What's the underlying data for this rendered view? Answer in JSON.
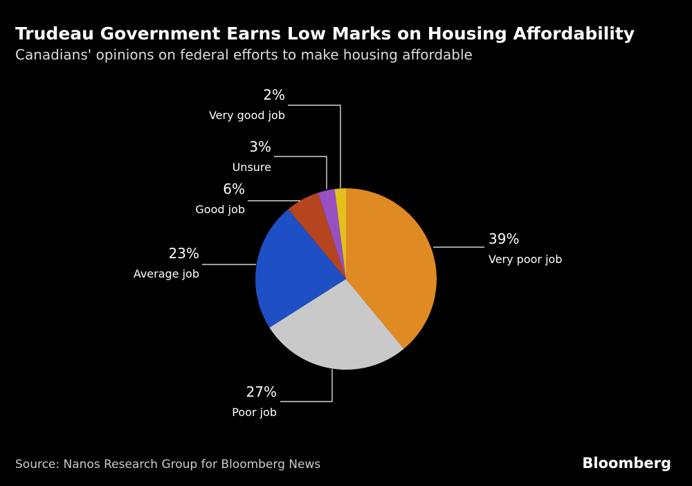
{
  "chart_data": {
    "type": "pie",
    "title": "Trudeau Government Earns Low Marks on Housing Affordability",
    "subtitle": "Canadians' opinions on federal efforts to make housing affordable",
    "categories": [
      "Very poor job",
      "Poor job",
      "Average job",
      "Good job",
      "Unsure",
      "Very good job"
    ],
    "values": [
      39,
      27,
      23,
      6,
      3,
      2
    ],
    "value_labels": [
      "39%",
      "27%",
      "23%",
      "6%",
      "3%",
      "2%"
    ],
    "colors": [
      "#df8a22",
      "#c9c9c9",
      "#1f4fc4",
      "#b5441f",
      "#9650c0",
      "#e3c11c"
    ],
    "source": "Source: Nanos Research Group for Bloomberg News",
    "brand": "Bloomberg"
  }
}
